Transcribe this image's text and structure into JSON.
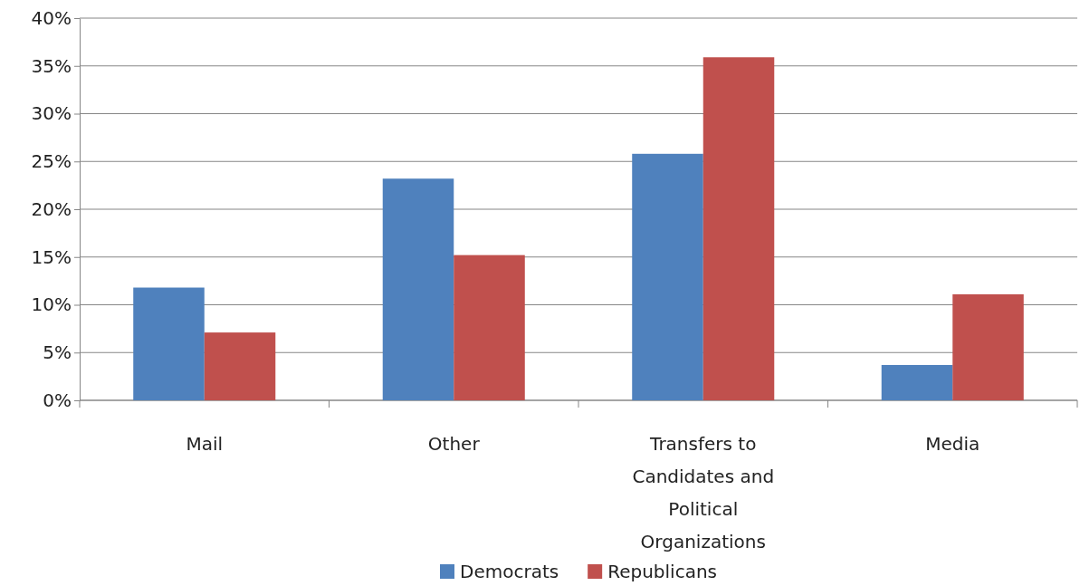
{
  "chart_data": {
    "type": "bar",
    "categories": [
      "Mail",
      "Other",
      "Transfers to Candidates and Political Organizations",
      "Media"
    ],
    "series": [
      {
        "name": "Democrats",
        "color": "#4f81bd",
        "values": [
          11.8,
          23.2,
          25.8,
          3.7
        ]
      },
      {
        "name": "Republicans",
        "color": "#c0504d",
        "values": [
          7.1,
          15.2,
          35.9,
          11.1
        ]
      }
    ],
    "ylim": [
      0,
      40
    ],
    "yticks": [
      {
        "value": 0,
        "label": "0%"
      },
      {
        "value": 5,
        "label": "5%"
      },
      {
        "value": 10,
        "label": "10%"
      },
      {
        "value": 15,
        "label": "15%"
      },
      {
        "value": 20,
        "label": "20%"
      },
      {
        "value": 25,
        "label": "25%"
      },
      {
        "value": 30,
        "label": "30%"
      },
      {
        "value": 35,
        "label": "35%"
      },
      {
        "value": 40,
        "label": "40%"
      }
    ],
    "grid": "y",
    "legend": "bottom"
  }
}
